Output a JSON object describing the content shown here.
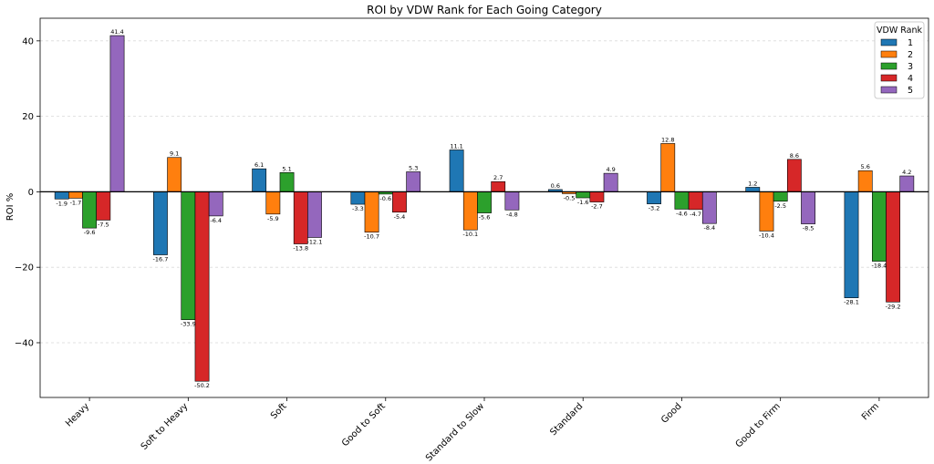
{
  "chart_data": {
    "type": "bar",
    "title": "ROI by VDW Rank for Each Going Category",
    "xlabel": "",
    "ylabel": "ROI %",
    "ylim": [
      -54.5,
      46
    ],
    "yticks": [
      -40,
      -20,
      0,
      20,
      40
    ],
    "grid": "horizontal dashed",
    "legend_position": "top-right",
    "legend_title": "VDW Rank",
    "categories": [
      "Heavy",
      "Soft to Heavy",
      "Soft",
      "Good to Soft",
      "Standard to Slow",
      "Standard",
      "Good",
      "Good to Firm",
      "Firm"
    ],
    "series": [
      {
        "name": "1",
        "color": "#1f77b4",
        "values": [
          -1.9,
          -16.7,
          6.1,
          -3.3,
          11.1,
          0.6,
          -3.2,
          1.2,
          -28.1
        ]
      },
      {
        "name": "2",
        "color": "#ff7f0e",
        "values": [
          -1.7,
          9.1,
          -5.9,
          -10.7,
          -10.1,
          -0.5,
          12.8,
          -10.4,
          5.6
        ]
      },
      {
        "name": "3",
        "color": "#2ca02c",
        "values": [
          -9.6,
          -33.9,
          5.1,
          -0.6,
          -5.6,
          -1.6,
          -4.6,
          -2.5,
          -18.4
        ]
      },
      {
        "name": "4",
        "color": "#d62728",
        "values": [
          -7.5,
          -50.2,
          -13.8,
          -5.4,
          2.7,
          -2.7,
          -4.7,
          8.6,
          -29.2
        ]
      },
      {
        "name": "5",
        "color": "#9467bd",
        "values": [
          41.4,
          -6.4,
          -12.1,
          5.3,
          -4.8,
          4.9,
          -8.4,
          -8.5,
          4.2
        ]
      }
    ]
  }
}
